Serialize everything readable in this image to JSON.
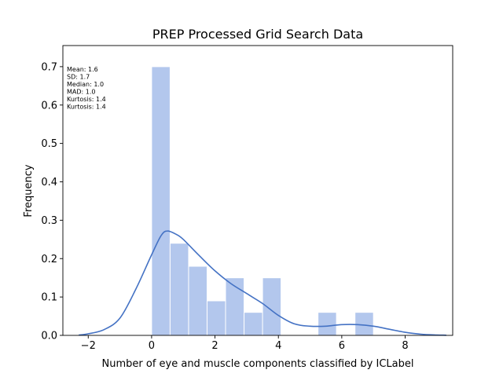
{
  "chart_data": {
    "type": "bar",
    "title": "PREP Processed Grid Search Data",
    "xlabel": "Number of eye and muscle components classified by ICLabel",
    "ylabel": "Frequency",
    "xlim": [
      -2.8,
      9.5
    ],
    "ylim": [
      0,
      0.755
    ],
    "xticks": [
      -2,
      0,
      2,
      4,
      6,
      8
    ],
    "xtick_labels": [
      "−2",
      "0",
      "2",
      "4",
      "6",
      "8"
    ],
    "yticks": [
      0.0,
      0.1,
      0.2,
      0.3,
      0.4,
      0.5,
      0.6,
      0.7
    ],
    "ytick_labels": [
      "0.0",
      "0.1",
      "0.2",
      "0.3",
      "0.4",
      "0.5",
      "0.6",
      "0.7"
    ],
    "histogram": {
      "bins": [
        {
          "x0": 0.0,
          "x1": 0.583,
          "value": 0.7
        },
        {
          "x0": 0.583,
          "x1": 1.167,
          "value": 0.24
        },
        {
          "x0": 1.167,
          "x1": 1.75,
          "value": 0.18
        },
        {
          "x0": 1.75,
          "x1": 2.333,
          "value": 0.09
        },
        {
          "x0": 2.333,
          "x1": 2.917,
          "value": 0.15
        },
        {
          "x0": 2.917,
          "x1": 3.5,
          "value": 0.06
        },
        {
          "x0": 3.5,
          "x1": 4.083,
          "value": 0.15
        },
        {
          "x0": 4.083,
          "x1": 4.667,
          "value": 0.0
        },
        {
          "x0": 4.667,
          "x1": 5.25,
          "value": 0.0
        },
        {
          "x0": 5.25,
          "x1": 5.833,
          "value": 0.06
        },
        {
          "x0": 5.833,
          "x1": 6.417,
          "value": 0.0
        },
        {
          "x0": 6.417,
          "x1": 7.0,
          "value": 0.06
        }
      ]
    },
    "kde": {
      "x": [
        -2.3,
        -2.0,
        -1.5,
        -1.0,
        -0.5,
        0.0,
        0.3,
        0.5,
        0.8,
        1.0,
        1.5,
        2.0,
        2.5,
        3.0,
        3.5,
        4.0,
        4.5,
        5.0,
        5.5,
        6.0,
        6.5,
        7.0,
        7.5,
        8.0,
        8.5,
        9.0,
        9.3
      ],
      "y": [
        0.001,
        0.004,
        0.015,
        0.045,
        0.12,
        0.21,
        0.26,
        0.272,
        0.262,
        0.25,
        0.208,
        0.168,
        0.135,
        0.109,
        0.083,
        0.052,
        0.03,
        0.024,
        0.024,
        0.028,
        0.028,
        0.024,
        0.016,
        0.008,
        0.003,
        0.001,
        0.0005
      ]
    },
    "annotations": [
      "Mean: 1.6",
      "SD: 1.7",
      "Median: 1.0",
      "MAD: 1.0",
      "Kurtosis: 1.4",
      "Kurtosis: 1.4"
    ],
    "colors": {
      "bar_fill": "#b3c7ed",
      "bar_edge": "#ffffff",
      "kde_line": "#4472c4"
    },
    "grid": false,
    "legend": "none"
  }
}
